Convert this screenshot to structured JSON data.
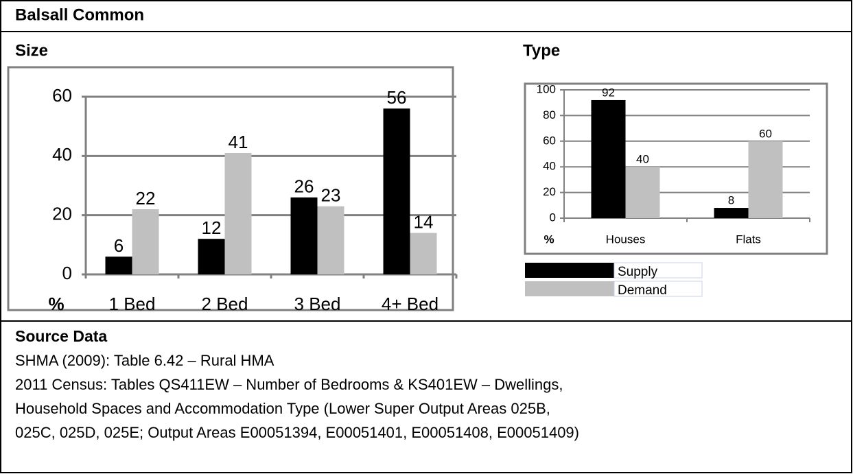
{
  "title": "Balsall Common",
  "chart_data": [
    {
      "type": "bar",
      "title": "Size",
      "y_label": "%",
      "categories": [
        "1 Bed",
        "2 Bed",
        "3 Bed",
        "4+ Bed"
      ],
      "series": [
        {
          "color": "#000000",
          "values": [
            6,
            12,
            26,
            56
          ]
        },
        {
          "color": "#c0c0c0",
          "values": [
            22,
            41,
            23,
            14
          ]
        }
      ],
      "ylim": [
        0,
        60
      ],
      "yticks": [
        0,
        20,
        40,
        60
      ],
      "grid": true
    },
    {
      "type": "bar",
      "title": "Type",
      "y_label": "%",
      "categories": [
        "Houses",
        "Flats"
      ],
      "series": [
        {
          "name": "Supply",
          "color": "#000000",
          "values": [
            92,
            8
          ]
        },
        {
          "name": "Demand",
          "color": "#c0c0c0",
          "values": [
            40,
            60
          ]
        }
      ],
      "ylim": [
        0,
        100
      ],
      "yticks": [
        0,
        20,
        40,
        60,
        80,
        100
      ],
      "grid": true,
      "legend": "bottom"
    }
  ],
  "source": {
    "title": "Source Data",
    "lines": [
      "SHMA (2009): Table 6.42 – Rural HMA",
      "2011 Census: Tables QS411EW – Number of Bedrooms & KS401EW – Dwellings,",
      "Household Spaces and Accommodation Type (Lower Super Output Areas 025B,",
      "025C, 025D, 025E; Output Areas E00051394, E00051401, E00051408, E00051409)"
    ]
  }
}
